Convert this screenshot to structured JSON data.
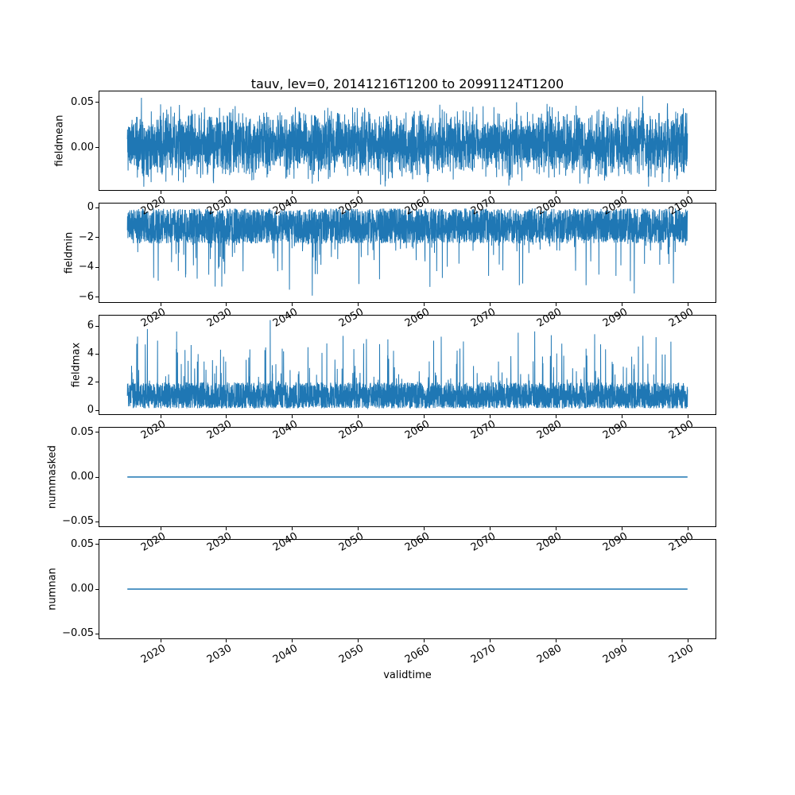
{
  "chart_data": {
    "type": "line",
    "title": "tauv, lev=0, 20141216T1200 to 20991124T1200",
    "xlabel": "validtime",
    "line_color": "#1f77b4",
    "background_color": "#ffffff",
    "x_range": [
      2014.96,
      2099.9
    ],
    "xlim": [
      2010.71,
      2104.15
    ],
    "xticks": [
      2020,
      2030,
      2040,
      2050,
      2060,
      2070,
      2080,
      2090,
      2100
    ],
    "xtick_labels": [
      "2020",
      "2030",
      "2040",
      "2050",
      "2060",
      "2070",
      "2080",
      "2090",
      "2100"
    ],
    "legend": "none",
    "grid": false,
    "subplots": [
      {
        "ylabel": "fieldmean",
        "ylim": [
          -0.047,
          0.062
        ],
        "yticks": [
          {
            "value": 0.0,
            "label": "0.00"
          },
          {
            "value": 0.05,
            "label": "0.05"
          }
        ],
        "series": {
          "kind": "mean-noise",
          "n": 4200,
          "seed": 11,
          "base": 0.004,
          "amp": 0.05,
          "description": "dense noise around 0, mostly within ±0.02, extremes +0.057 / −0.043",
          "anchors": [
            [
              0.025,
              0.055
            ],
            [
              0.695,
              0.05
            ],
            [
              0.92,
              0.057
            ],
            [
              0.33,
              -0.04
            ],
            [
              0.46,
              -0.043
            ]
          ]
        }
      },
      {
        "ylabel": "fieldmin",
        "ylim": [
          -6.33,
          0.28
        ],
        "yticks": [
          {
            "value": 0,
            "label": "0"
          },
          {
            "value": -2,
            "label": "−2"
          },
          {
            "value": -4,
            "label": "−4"
          },
          {
            "value": -6,
            "label": "−6"
          }
        ],
        "series": {
          "kind": "min-noise",
          "n": 4200,
          "seed": 22,
          "clamp": -6.03,
          "description": "dense negative noise band 0 to −2.5, downward spikes to about −6",
          "anchors": [
            [
              0.055,
              -4.9
            ],
            [
              0.33,
              -5.9
            ],
            [
              0.45,
              -4.8
            ],
            [
              0.7,
              -5.2
            ],
            [
              0.905,
              -5.75
            ]
          ]
        }
      },
      {
        "ylabel": "fieldmax",
        "ylim": [
          -0.27,
          6.74
        ],
        "yticks": [
          {
            "value": 0,
            "label": "0"
          },
          {
            "value": 2,
            "label": "2"
          },
          {
            "value": 4,
            "label": "4"
          },
          {
            "value": 6,
            "label": "6"
          }
        ],
        "series": {
          "kind": "max-noise",
          "n": 4200,
          "seed": 33,
          "clamp": 6.42,
          "description": "dense positive noise band 0 to 2, upward spikes to about 6.4",
          "anchors": [
            [
              0.018,
              5.25
            ],
            [
              0.255,
              6.42
            ],
            [
              0.385,
              5.3
            ],
            [
              0.465,
              5.05
            ],
            [
              0.6,
              4.9
            ],
            [
              0.845,
              4.7
            ]
          ]
        }
      },
      {
        "ylabel": "nummasked",
        "ylim": [
          -0.055,
          0.055
        ],
        "yticks": [
          {
            "value": -0.05,
            "label": "−0.05"
          },
          {
            "value": 0.0,
            "label": "0.00"
          },
          {
            "value": 0.05,
            "label": "0.05"
          }
        ],
        "series": {
          "kind": "constant",
          "n": 2,
          "seed": 1,
          "value": 0,
          "description": "constant 0 line"
        }
      },
      {
        "ylabel": "numnan",
        "ylim": [
          -0.055,
          0.055
        ],
        "yticks": [
          {
            "value": -0.05,
            "label": "−0.05"
          },
          {
            "value": 0.0,
            "label": "0.00"
          },
          {
            "value": 0.05,
            "label": "0.05"
          }
        ],
        "series": {
          "kind": "constant",
          "n": 2,
          "seed": 1,
          "value": 0,
          "description": "constant 0 line"
        }
      }
    ]
  }
}
